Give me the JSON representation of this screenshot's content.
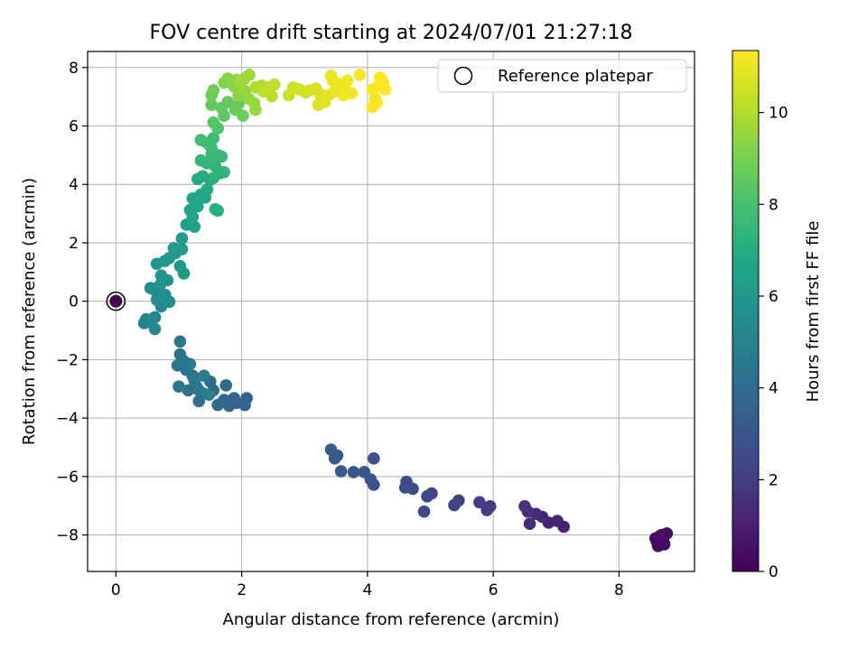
{
  "chart_data": {
    "type": "scatter",
    "title": "FOV centre drift starting at 2024/07/01 21:27:18",
    "xlabel": "Angular distance from reference (arcmin)",
    "ylabel": "Rotation from reference (arcmin)",
    "colorbar_label": "Hours from first FF file",
    "xlim": [
      -0.45,
      9.2
    ],
    "ylim": [
      -9.25,
      8.55
    ],
    "clim": [
      0,
      11.35
    ],
    "colormap": "viridis",
    "grid": true,
    "x_ticks": [
      0,
      2,
      4,
      6,
      8
    ],
    "y_ticks": [
      -8,
      -6,
      -4,
      -2,
      0,
      2,
      4,
      6,
      8
    ],
    "colorbar_ticks": [
      0,
      2,
      4,
      6,
      8,
      10
    ],
    "legend": {
      "position": "top-right",
      "entries": [
        "Reference platepar"
      ]
    },
    "reference_point": {
      "x": 0,
      "y": 0,
      "color": "#440154"
    },
    "points": [
      [
        8.58,
        -8.12,
        0.1
      ],
      [
        8.62,
        -8.38,
        0.15
      ],
      [
        8.68,
        -8.0,
        0.2
      ],
      [
        8.72,
        -8.32,
        0.25
      ],
      [
        8.76,
        -7.95,
        0.3
      ],
      [
        8.6,
        -8.22,
        0.35
      ],
      [
        8.7,
        -8.15,
        0.4
      ],
      [
        8.64,
        -8.05,
        0.45
      ],
      [
        7.12,
        -7.72,
        1.0
      ],
      [
        7.02,
        -7.52,
        1.1
      ],
      [
        6.88,
        -7.58,
        1.2
      ],
      [
        6.78,
        -7.38,
        1.3
      ],
      [
        6.68,
        -7.28,
        1.4
      ],
      [
        6.58,
        -7.62,
        1.5
      ],
      [
        6.55,
        -7.2,
        1.55
      ],
      [
        6.5,
        -7.02,
        1.6
      ],
      [
        5.95,
        -7.02,
        1.9
      ],
      [
        5.9,
        -7.15,
        2.0
      ],
      [
        5.78,
        -6.88,
        2.1
      ],
      [
        5.45,
        -6.82,
        2.2
      ],
      [
        5.38,
        -6.98,
        2.3
      ],
      [
        5.02,
        -6.58,
        2.4
      ],
      [
        4.95,
        -6.68,
        2.45
      ],
      [
        4.9,
        -7.2,
        2.5
      ],
      [
        4.72,
        -6.42,
        2.55
      ],
      [
        4.62,
        -6.18,
        2.6
      ],
      [
        4.6,
        -6.38,
        2.65
      ],
      [
        4.1,
        -6.28,
        2.8
      ],
      [
        4.05,
        -6.1,
        2.85
      ],
      [
        4.1,
        -5.38,
        2.9
      ],
      [
        3.95,
        -5.85,
        3.0
      ],
      [
        3.78,
        -5.85,
        3.05
      ],
      [
        3.58,
        -5.82,
        3.1
      ],
      [
        3.52,
        -5.28,
        3.15
      ],
      [
        3.48,
        -5.38,
        3.2
      ],
      [
        3.42,
        -5.08,
        3.25
      ],
      [
        2.08,
        -3.32,
        3.5
      ],
      [
        2.05,
        -3.55,
        3.55
      ],
      [
        1.92,
        -3.48,
        3.6
      ],
      [
        1.88,
        -3.32,
        3.65
      ],
      [
        1.8,
        -3.58,
        3.7
      ],
      [
        1.72,
        -3.38,
        3.75
      ],
      [
        1.75,
        -2.88,
        3.8
      ],
      [
        1.62,
        -3.55,
        3.85
      ],
      [
        1.55,
        -3.05,
        3.9
      ],
      [
        1.5,
        -2.75,
        3.95
      ],
      [
        1.38,
        -3.15,
        4.0
      ],
      [
        1.32,
        -3.42,
        4.05
      ],
      [
        1.28,
        -2.92,
        4.1
      ],
      [
        1.22,
        -2.55,
        4.15
      ],
      [
        1.15,
        -3.05,
        4.2
      ],
      [
        1.12,
        -2.35,
        4.25
      ],
      [
        1.08,
        -2.05,
        4.3
      ],
      [
        1.02,
        -1.82,
        4.35
      ],
      [
        0.98,
        -2.2,
        4.4
      ],
      [
        1.0,
        -2.92,
        4.45
      ],
      [
        1.02,
        -1.38,
        4.5
      ],
      [
        1.18,
        -2.15,
        4.55
      ],
      [
        1.25,
        -2.72,
        4.6
      ],
      [
        1.32,
        -3.05,
        4.65
      ],
      [
        1.4,
        -2.55,
        4.7
      ],
      [
        1.48,
        -3.2,
        4.75
      ],
      [
        0.62,
        -0.55,
        5.0
      ],
      [
        0.55,
        -0.72,
        5.05
      ],
      [
        0.48,
        -0.62,
        5.1
      ],
      [
        0.45,
        -0.75,
        5.15
      ],
      [
        0.62,
        -0.95,
        5.2
      ],
      [
        0.58,
        -0.62,
        5.25
      ],
      [
        0.72,
        -0.18,
        5.3
      ],
      [
        0.65,
        0.05,
        5.35
      ],
      [
        0.55,
        0.45,
        5.4
      ],
      [
        0.62,
        0.38,
        5.45
      ],
      [
        0.85,
        -0.02,
        5.6
      ],
      [
        0.78,
        0.22,
        5.65
      ],
      [
        0.7,
        0.55,
        5.7
      ],
      [
        0.82,
        0.72,
        5.75
      ],
      [
        0.72,
        0.88,
        5.8
      ],
      [
        0.65,
        1.28,
        5.85
      ],
      [
        0.78,
        1.38,
        5.9
      ],
      [
        0.85,
        1.48,
        5.95
      ],
      [
        1.02,
        1.2,
        6.0
      ],
      [
        1.08,
        0.95,
        6.05
      ],
      [
        0.95,
        1.65,
        6.1
      ],
      [
        0.92,
        1.82,
        6.15
      ],
      [
        1.05,
        1.78,
        6.2
      ],
      [
        1.05,
        2.15,
        6.25
      ],
      [
        1.12,
        2.62,
        6.4
      ],
      [
        1.25,
        2.55,
        6.45
      ],
      [
        1.22,
        2.88,
        6.5
      ],
      [
        1.18,
        3.12,
        6.55
      ],
      [
        1.3,
        3.25,
        6.6
      ],
      [
        1.22,
        3.52,
        6.65
      ],
      [
        1.35,
        3.65,
        6.7
      ],
      [
        1.42,
        3.55,
        6.75
      ],
      [
        1.45,
        3.82,
        6.8
      ],
      [
        1.3,
        4.18,
        6.85
      ],
      [
        1.38,
        4.28,
        6.9
      ],
      [
        1.5,
        4.15,
        6.95
      ],
      [
        1.58,
        3.15,
        7.1
      ],
      [
        1.62,
        3.1,
        7.15
      ],
      [
        1.55,
        4.22,
        7.2
      ],
      [
        1.65,
        4.38,
        7.25
      ],
      [
        1.72,
        4.42,
        7.3
      ],
      [
        1.58,
        4.62,
        7.35
      ],
      [
        1.45,
        4.72,
        7.4
      ],
      [
        1.35,
        4.82,
        7.45
      ],
      [
        1.52,
        5.02,
        7.5
      ],
      [
        1.62,
        5.0,
        7.55
      ],
      [
        1.68,
        4.95,
        7.6
      ],
      [
        1.52,
        5.25,
        7.65
      ],
      [
        1.45,
        5.42,
        7.7
      ],
      [
        1.55,
        5.58,
        7.75
      ],
      [
        1.35,
        5.52,
        7.8
      ],
      [
        1.62,
        5.92,
        8.2
      ],
      [
        1.55,
        6.12,
        8.3
      ],
      [
        1.72,
        6.35,
        8.4
      ],
      [
        1.52,
        6.72,
        8.5
      ],
      [
        1.68,
        6.62,
        8.55
      ],
      [
        1.78,
        6.82,
        8.6
      ],
      [
        1.95,
        6.75,
        8.65
      ],
      [
        1.9,
        6.55,
        8.7
      ],
      [
        2.02,
        6.35,
        8.75
      ],
      [
        1.55,
        7.22,
        8.8
      ],
      [
        1.52,
        7.05,
        8.85
      ],
      [
        1.72,
        7.48,
        9.2
      ],
      [
        1.78,
        7.62,
        9.25
      ],
      [
        1.92,
        7.58,
        9.3
      ],
      [
        1.88,
        7.35,
        9.35
      ],
      [
        1.95,
        7.05,
        9.4
      ],
      [
        2.05,
        7.2,
        9.45
      ],
      [
        2.12,
        6.92,
        9.5
      ],
      [
        2.2,
        6.78,
        9.55
      ],
      [
        2.22,
        6.55,
        9.6
      ],
      [
        2.05,
        7.62,
        9.65
      ],
      [
        2.12,
        7.75,
        9.7
      ],
      [
        1.98,
        7.52,
        9.75
      ],
      [
        2.22,
        7.32,
        10.0
      ],
      [
        2.32,
        7.38,
        10.05
      ],
      [
        2.42,
        7.32,
        10.1
      ],
      [
        2.48,
        7.02,
        10.15
      ],
      [
        2.35,
        7.18,
        10.2
      ],
      [
        2.52,
        7.42,
        10.25
      ],
      [
        2.75,
        7.05,
        10.4
      ],
      [
        2.82,
        7.32,
        10.45
      ],
      [
        2.92,
        7.25,
        10.5
      ],
      [
        3.02,
        7.15,
        10.55
      ],
      [
        3.08,
        7.22,
        10.6
      ],
      [
        3.18,
        7.28,
        10.65
      ],
      [
        3.25,
        7.08,
        10.7
      ],
      [
        3.3,
        6.92,
        10.75
      ],
      [
        3.22,
        6.72,
        10.8
      ],
      [
        3.32,
        6.82,
        10.85
      ],
      [
        3.38,
        7.05,
        10.9
      ],
      [
        3.48,
        7.18,
        10.95
      ],
      [
        3.45,
        7.55,
        11.0
      ],
      [
        3.42,
        7.72,
        11.05
      ],
      [
        3.55,
        7.45,
        11.1
      ],
      [
        3.62,
        7.32,
        11.12
      ],
      [
        3.68,
        7.55,
        11.15
      ],
      [
        3.62,
        7.05,
        11.18
      ],
      [
        3.75,
        7.12,
        11.2
      ],
      [
        3.88,
        7.75,
        11.22
      ],
      [
        4.08,
        7.25,
        11.25
      ],
      [
        4.12,
        6.95,
        11.28
      ],
      [
        4.08,
        6.65,
        11.3
      ],
      [
        4.15,
        6.8,
        11.32
      ],
      [
        4.18,
        7.38,
        11.33
      ],
      [
        4.2,
        7.65,
        11.34
      ],
      [
        4.25,
        7.5,
        11.35
      ],
      [
        4.28,
        7.25,
        11.35
      ]
    ]
  }
}
